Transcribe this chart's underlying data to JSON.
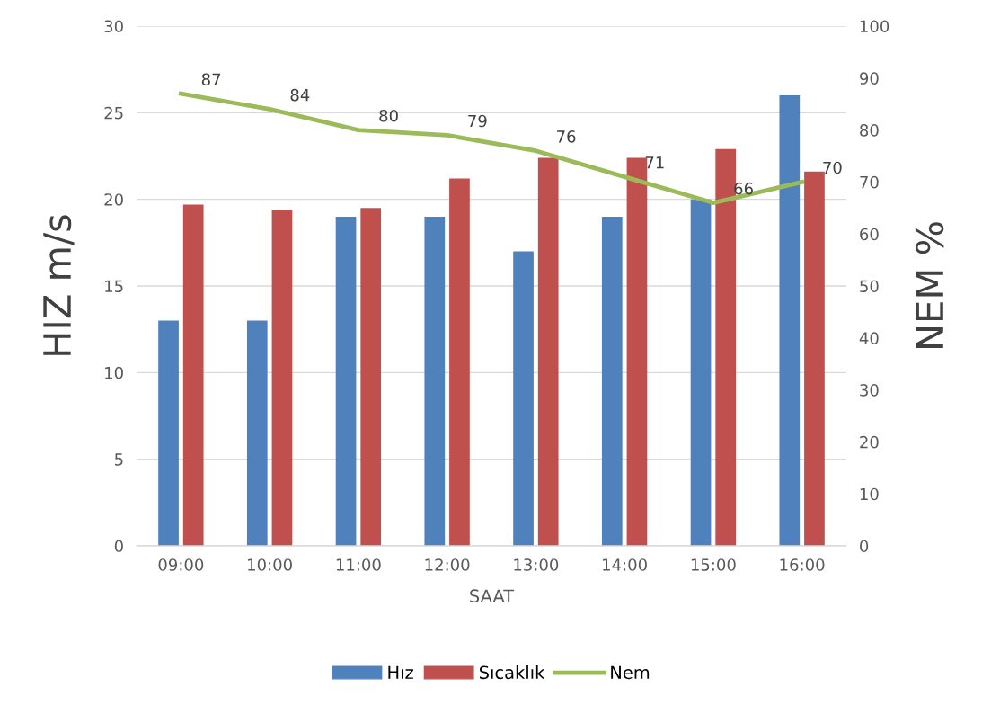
{
  "chart_data": {
    "type": "bar",
    "xlabel": "SAAT",
    "ylabel": "HIZ m/s",
    "y2label": "NEM %",
    "categories": [
      "09:00",
      "10:00",
      "11:00",
      "12:00",
      "13:00",
      "14:00",
      "15:00",
      "16:00"
    ],
    "series": [
      {
        "name": "Hız",
        "color": "#4f81bd",
        "values": [
          13,
          13,
          19,
          19,
          17,
          19,
          20,
          26
        ]
      },
      {
        "name": "Sıcaklık",
        "color": "#c0504d",
        "values": [
          19.7,
          19.4,
          19.5,
          21.2,
          22.4,
          22.4,
          22.9,
          21.6
        ]
      },
      {
        "name": "Nem",
        "type": "line",
        "axis": "y2",
        "color": "#9bbb59",
        "values": [
          87,
          84,
          80,
          79,
          76,
          71,
          66,
          70
        ],
        "value_labels": [
          "87",
          "84",
          "80",
          "79",
          "76",
          "71",
          "66",
          "70"
        ]
      }
    ],
    "ylim": [
      0,
      30
    ],
    "yticks": [
      0,
      5,
      10,
      15,
      20,
      25,
      30
    ],
    "y2lim": [
      0,
      100
    ],
    "y2ticks": [
      0,
      10,
      20,
      30,
      40,
      50,
      60,
      70,
      80,
      90,
      100
    ],
    "grid": "y",
    "legend": "bottom",
    "marker": "none",
    "line_style": "solid"
  }
}
